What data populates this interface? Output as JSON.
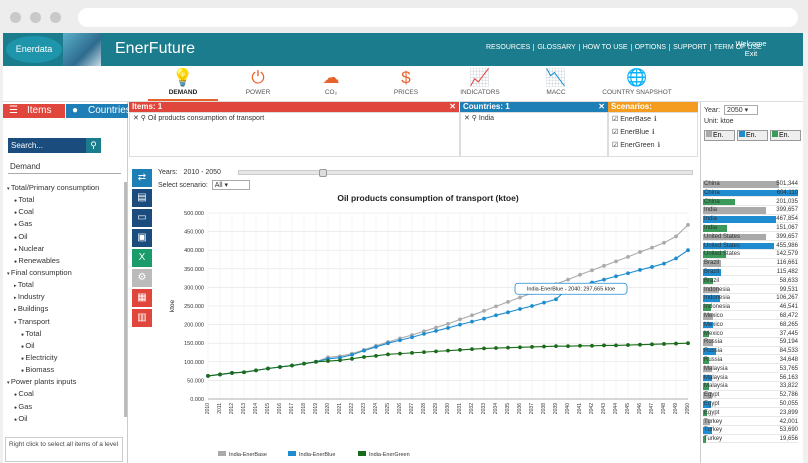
{
  "app": {
    "logo_text": "Enerdata",
    "title": "EnerFuture",
    "links": [
      "RESOURCES",
      "GLOSSARY",
      "HOW TO USE",
      "OPTIONS",
      "SUPPORT",
      "TERM OF USE"
    ],
    "welcome": "Welcome",
    "exit": "Exit"
  },
  "tabs": [
    {
      "label": "DEMAND",
      "icon": "lightbulb-icon",
      "glyph": "💡"
    },
    {
      "label": "POWER",
      "icon": "power-plug-icon",
      "glyph": "⏻"
    },
    {
      "label": "CO₂",
      "icon": "co2-cloud-icon",
      "glyph": "☁"
    },
    {
      "label": "PRICES",
      "icon": "dollar-icon",
      "glyph": "$"
    },
    {
      "label": "INDICATORS",
      "icon": "growth-chart-icon",
      "glyph": "📈"
    },
    {
      "label": "MACC",
      "icon": "macc-curve-icon",
      "glyph": "📉"
    },
    {
      "label": "COUNTRY SNAPSHOT",
      "icon": "globe-icon",
      "glyph": "🌐"
    }
  ],
  "left": {
    "items_label": "Items",
    "countries_label": "Countries",
    "search_placeholder": "Search...",
    "category": "Demand",
    "tree": [
      {
        "label": "Total/Primary consumption",
        "level": 0,
        "kind": "folder"
      },
      {
        "label": "Total",
        "level": 1,
        "kind": "dot"
      },
      {
        "label": "Coal",
        "level": 1,
        "kind": "dot"
      },
      {
        "label": "Gas",
        "level": 1,
        "kind": "dot"
      },
      {
        "label": "Oil",
        "level": 1,
        "kind": "dot"
      },
      {
        "label": "Nuclear",
        "level": 1,
        "kind": "dot"
      },
      {
        "label": "Renewables",
        "level": 1,
        "kind": "dot"
      },
      {
        "label": "Final consumption",
        "level": 0,
        "kind": "folder"
      },
      {
        "label": "Total",
        "level": 1,
        "kind": "arrow"
      },
      {
        "label": "Industry",
        "level": 1,
        "kind": "arrow"
      },
      {
        "label": "Buildings",
        "level": 1,
        "kind": "arrow"
      },
      {
        "label": "Transport",
        "level": 1,
        "kind": "folder"
      },
      {
        "label": "Total",
        "level": 2,
        "kind": "dot"
      },
      {
        "label": "Oil",
        "level": 2,
        "kind": "dot"
      },
      {
        "label": "Electricity",
        "level": 2,
        "kind": "dot"
      },
      {
        "label": "Biomass",
        "level": 2,
        "kind": "dot"
      },
      {
        "label": "Power plants inputs",
        "level": 0,
        "kind": "folder"
      },
      {
        "label": "Coal",
        "level": 1,
        "kind": "dot"
      },
      {
        "label": "Gas",
        "level": 1,
        "kind": "dot"
      },
      {
        "label": "Oil",
        "level": 1,
        "kind": "dot"
      }
    ],
    "help_text": "Right click to select all items of a level"
  },
  "selection": {
    "items_header": "Items: 1",
    "item_value": "Oil products consumption of transport",
    "countries_header": "Countries: 1",
    "country_value": "India",
    "scenarios_header": "Scenarios:",
    "scenarios": [
      "EnerBase",
      "EnerBlue",
      "EnerGreen"
    ]
  },
  "controls": {
    "years_label": "Years:",
    "years_value": "2010 - 2050",
    "scenario_label": "Select scenario:",
    "scenario_value": "All"
  },
  "tooltip": "India-EnerBlue - 2040: 297,665 ktoe",
  "colors": {
    "teal": "#1a7c8c",
    "red": "#e0463b",
    "blue": "#1e7eb6",
    "orange": "#f39c1f",
    "enerbase": "#aaaaaa",
    "enerblue": "#1f8ccf",
    "energreen": "#1a6b1a"
  },
  "chart_data": {
    "type": "line",
    "title": "Oil products consumption of transport (ktoe)",
    "ylabel": "ktoe",
    "ylim": [
      0,
      500000
    ],
    "yticks": [
      "0.000",
      "50.000",
      "100.000",
      "150.000",
      "200.000",
      "250.000",
      "300.000",
      "350.000",
      "400.000",
      "450.000",
      "500.000"
    ],
    "x": [
      "2010",
      "2011",
      "2012",
      "2013",
      "2014",
      "2015",
      "2016",
      "2017",
      "2018",
      "2019",
      "2020",
      "2021",
      "2022",
      "2023",
      "2024",
      "2025",
      "2026",
      "2027",
      "2028",
      "2029",
      "2030",
      "2031",
      "2032",
      "2033",
      "2034",
      "2035",
      "2036",
      "2037",
      "2038",
      "2039",
      "2040",
      "2041",
      "2042",
      "2043",
      "2044",
      "2045",
      "2046",
      "2047",
      "2048",
      "2049",
      "2050"
    ],
    "series": [
      {
        "name": "India-EnerBase",
        "color": "#aaaaaa",
        "values": [
          62000,
          66000,
          70000,
          72000,
          77000,
          82000,
          86000,
          90000,
          95000,
          100000,
          112000,
          115000,
          122000,
          132000,
          143000,
          153000,
          163000,
          172000,
          182000,
          192000,
          202000,
          214000,
          225000,
          237000,
          249000,
          261000,
          273000,
          285000,
          297000,
          309000,
          321000,
          334000,
          346000,
          358000,
          370000,
          382000,
          395000,
          407000,
          420000,
          437000,
          468000
        ]
      },
      {
        "name": "India-EnerBlue",
        "color": "#1f8ccf",
        "values": [
          62000,
          66000,
          70000,
          72000,
          77000,
          82000,
          86000,
          90000,
          95000,
          100000,
          108000,
          111000,
          119000,
          130000,
          140000,
          150000,
          158000,
          166000,
          175000,
          183000,
          191000,
          200000,
          208000,
          216000,
          225000,
          233000,
          242000,
          250000,
          259000,
          268000,
          297665,
          305000,
          313000,
          321000,
          330000,
          338000,
          347000,
          355000,
          364000,
          378000,
          400000
        ]
      },
      {
        "name": "India-EnerGreen",
        "color": "#1a6b1a",
        "values": [
          62000,
          66000,
          70000,
          72000,
          77000,
          82000,
          86000,
          90000,
          95000,
          100000,
          102000,
          104000,
          108000,
          113000,
          116000,
          120000,
          122000,
          124000,
          126000,
          128000,
          130000,
          132000,
          134000,
          136000,
          137000,
          138000,
          139000,
          140000,
          141000,
          142000,
          142000,
          143000,
          143000,
          144000,
          144000,
          145000,
          146000,
          147000,
          148000,
          149000,
          150000
        ]
      }
    ],
    "legend": "bottom"
  },
  "right": {
    "year_label": "Year:",
    "year_value": "2050",
    "unit": "Unit: ktoe",
    "col_labels": [
      "En.",
      "En.",
      "En."
    ],
    "rows": [
      {
        "c": "China",
        "v": "501,344",
        "s": 0,
        "f": 0.8
      },
      {
        "c": "China",
        "v": "604,110",
        "s": 1,
        "f": 1.0
      },
      {
        "c": "China",
        "v": "201,035",
        "s": 2,
        "f": 0.34
      },
      {
        "c": "India",
        "v": "399,657",
        "s": 0,
        "f": 0.66
      },
      {
        "c": "India",
        "v": "467,854",
        "s": 1,
        "f": 0.77
      },
      {
        "c": "India",
        "v": "151,067",
        "s": 2,
        "f": 0.25
      },
      {
        "c": "United States",
        "v": "399,657",
        "s": 0,
        "f": 0.66
      },
      {
        "c": "United States",
        "v": "455,986",
        "s": 1,
        "f": 0.75
      },
      {
        "c": "United States",
        "v": "142,579",
        "s": 2,
        "f": 0.24
      },
      {
        "c": "Brazil",
        "v": "116,661",
        "s": 0,
        "f": 0.19
      },
      {
        "c": "Brazil",
        "v": "115,482",
        "s": 1,
        "f": 0.19
      },
      {
        "c": "Brazil",
        "v": "58,633",
        "s": 2,
        "f": 0.1
      },
      {
        "c": "Indonesia",
        "v": "99,531",
        "s": 0,
        "f": 0.17
      },
      {
        "c": "Indonesia",
        "v": "106,267",
        "s": 1,
        "f": 0.18
      },
      {
        "c": "Indonesia",
        "v": "46,541",
        "s": 2,
        "f": 0.08
      },
      {
        "c": "Mexico",
        "v": "68,472",
        "s": 0,
        "f": 0.11
      },
      {
        "c": "Mexico",
        "v": "68,265",
        "s": 1,
        "f": 0.11
      },
      {
        "c": "Mexico",
        "v": "37,445",
        "s": 2,
        "f": 0.06
      },
      {
        "c": "Russia",
        "v": "59,194",
        "s": 0,
        "f": 0.1
      },
      {
        "c": "Russia",
        "v": "84,533",
        "s": 1,
        "f": 0.14
      },
      {
        "c": "Russia",
        "v": "34,648",
        "s": 2,
        "f": 0.06
      },
      {
        "c": "Malaysia",
        "v": "53,765",
        "s": 0,
        "f": 0.09
      },
      {
        "c": "Malaysia",
        "v": "56,163",
        "s": 1,
        "f": 0.09
      },
      {
        "c": "Malaysia",
        "v": "33,822",
        "s": 2,
        "f": 0.06
      },
      {
        "c": "Egypt",
        "v": "52,786",
        "s": 0,
        "f": 0.09
      },
      {
        "c": "Egypt",
        "v": "50,055",
        "s": 1,
        "f": 0.08
      },
      {
        "c": "Egypt",
        "v": "23,899",
        "s": 2,
        "f": 0.04
      },
      {
        "c": "Turkey",
        "v": "42,001",
        "s": 0,
        "f": 0.07
      },
      {
        "c": "Turkey",
        "v": "53,690",
        "s": 1,
        "f": 0.09
      },
      {
        "c": "Turkey",
        "v": "19,656",
        "s": 2,
        "f": 0.03
      }
    ]
  }
}
